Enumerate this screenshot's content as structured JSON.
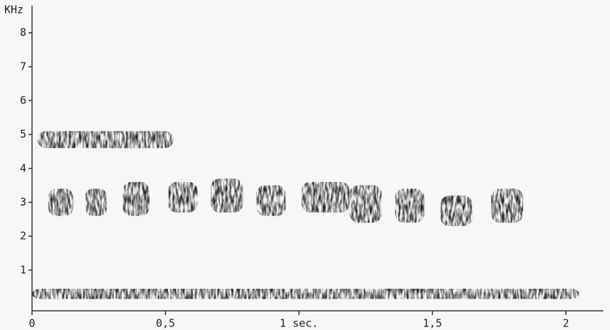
{
  "chart_data": {
    "type": "spectrogram",
    "y_label": "KHz",
    "xlim": [
      0,
      2.14
    ],
    "ylim": [
      -0.2,
      8.8
    ],
    "xticks": [
      0,
      {
        "value": 0.5,
        "label": "0,5"
      },
      {
        "value": 1,
        "label": "1 sec."
      },
      {
        "value": 1.5,
        "label": "1,5"
      },
      2
    ],
    "yticks": [
      1,
      2,
      3,
      4,
      5,
      6,
      7,
      8
    ],
    "grid": false,
    "color": "#1e1e1e",
    "segments": {
      "start": [
        0.06,
        0.2,
        0.34,
        0.51,
        0.67,
        0.84,
        1.01,
        1.19,
        1.36,
        1.53,
        1.72,
        0.0,
        0.02
      ],
      "end": [
        0.155,
        0.28,
        0.44,
        0.62,
        0.79,
        0.95,
        1.19,
        1.31,
        1.47,
        1.65,
        1.84,
        2.05,
        0.53
      ],
      "low": [
        2.6,
        2.6,
        2.6,
        2.7,
        2.7,
        2.6,
        2.7,
        2.4,
        2.4,
        2.3,
        2.4,
        0.15,
        4.6
      ],
      "high": [
        3.4,
        3.4,
        3.6,
        3.6,
        3.7,
        3.5,
        3.6,
        3.5,
        3.4,
        3.2,
        3.4,
        0.45,
        5.1
      ]
    }
  }
}
